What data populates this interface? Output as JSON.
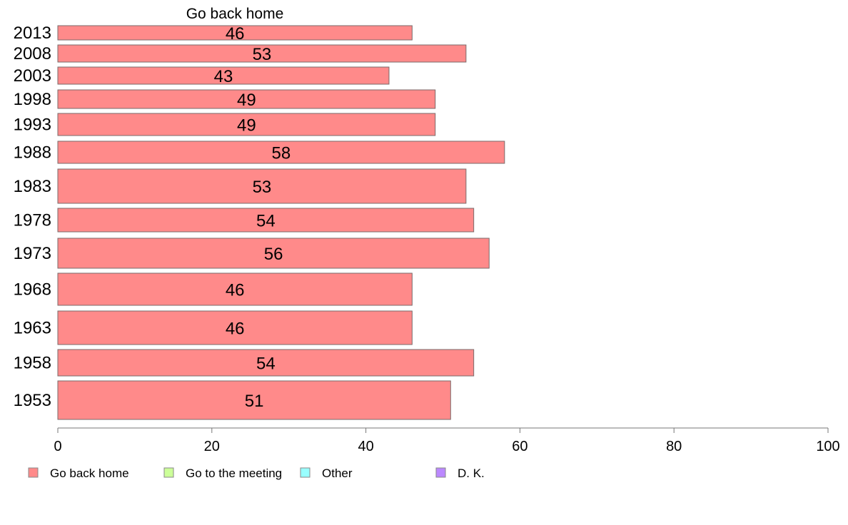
{
  "chart_data": {
    "type": "bar",
    "orientation": "horizontal",
    "panel_title": "Go back home",
    "categories": [
      "2013",
      "2008",
      "2003",
      "1998",
      "1993",
      "1988",
      "1983",
      "1978",
      "1973",
      "1968",
      "1963",
      "1958",
      "1953"
    ],
    "series": [
      {
        "name": "Go back home",
        "values": [
          46,
          53,
          43,
          49,
          49,
          58,
          53,
          54,
          56,
          46,
          46,
          54,
          51
        ],
        "color": "#ff8a8a"
      }
    ],
    "xlim": [
      0,
      100
    ],
    "xticks": [
      "0",
      "20",
      "40",
      "60",
      "80",
      "100"
    ],
    "grid": false,
    "legend": {
      "placement": "bottom",
      "items": [
        {
          "label": "Go back home",
          "color": "#ff8a8a"
        },
        {
          "label": "Go to the meeting",
          "color": "#ccff99"
        },
        {
          "label": "Other",
          "color": "#99ffff"
        },
        {
          "label": "D. K.",
          "color": "#bb88ff"
        }
      ]
    }
  }
}
